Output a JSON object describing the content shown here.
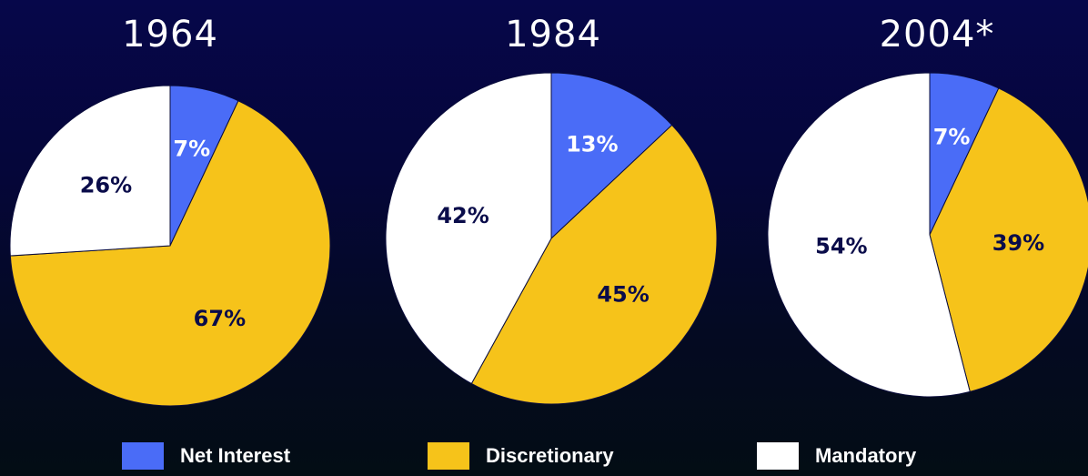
{
  "colors": {
    "net_interest": "#4a6cf7",
    "discretionary": "#f6c31a",
    "mandatory": "#ffffff",
    "label_on_light": "#0a0c4a",
    "label_on_dark": "#ffffff"
  },
  "chart_data": [
    {
      "type": "pie",
      "title": "1964",
      "slices": [
        {
          "name": "Net Interest",
          "value": 7,
          "label": "7%"
        },
        {
          "name": "Discretionary",
          "value": 67,
          "label": "67%"
        },
        {
          "name": "Mandatory",
          "value": 26,
          "label": "26%"
        }
      ]
    },
    {
      "type": "pie",
      "title": "1984",
      "slices": [
        {
          "name": "Net Interest",
          "value": 13,
          "label": "13%"
        },
        {
          "name": "Discretionary",
          "value": 45,
          "label": "45%"
        },
        {
          "name": "Mandatory",
          "value": 42,
          "label": "42%"
        }
      ]
    },
    {
      "type": "pie",
      "title": "2004*",
      "slices": [
        {
          "name": "Net Interest",
          "value": 7,
          "label": "7%"
        },
        {
          "name": "Discretionary",
          "value": 39,
          "label": "39%"
        },
        {
          "name": "Mandatory",
          "value": 54,
          "label": "54%"
        }
      ]
    }
  ],
  "legend": {
    "placement": "bottom",
    "items": [
      {
        "label": "Net Interest",
        "color": "#4a6cf7"
      },
      {
        "label": "Discretionary",
        "color": "#f6c31a"
      },
      {
        "label": "Mandatory",
        "color": "#ffffff"
      }
    ]
  }
}
